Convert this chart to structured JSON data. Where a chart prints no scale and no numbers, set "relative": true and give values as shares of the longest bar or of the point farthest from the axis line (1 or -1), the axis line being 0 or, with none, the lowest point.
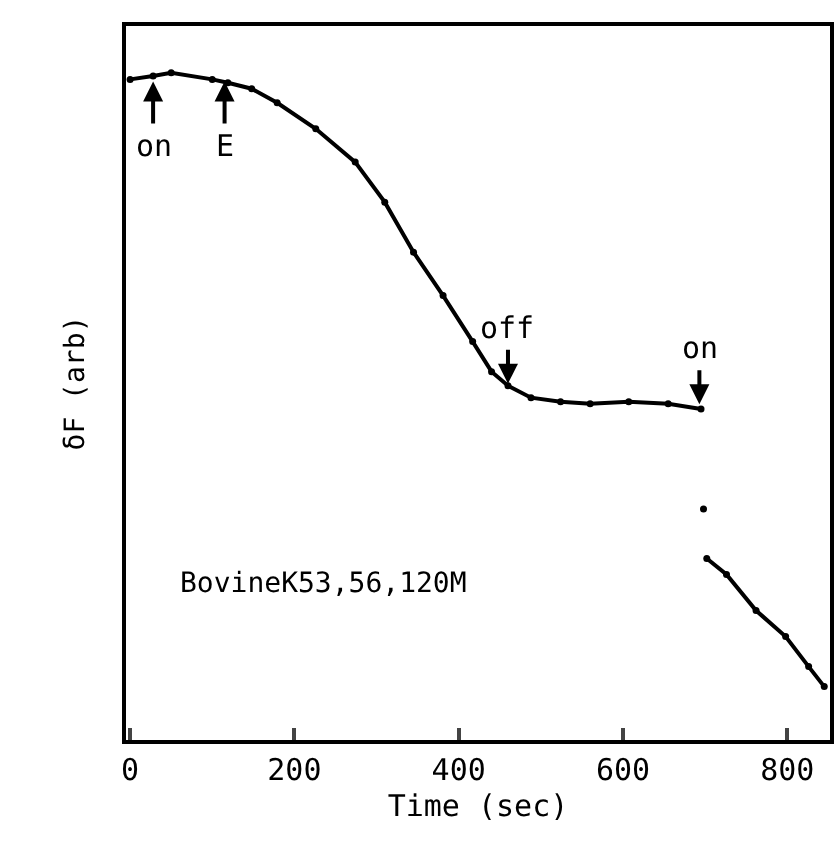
{
  "chart_data": {
    "type": "line",
    "relative": true,
    "xlabel": "Time (sec)",
    "ylabel": "δF (arb)",
    "xlim": [
      -5,
      852
    ],
    "xticks": [
      0,
      200,
      400,
      600,
      800
    ],
    "tick_labels": "x",
    "marker": "circle",
    "line_style": "solid",
    "series": [
      {
        "color": "#000000",
        "x": [
          0,
          28,
          50,
          100,
          119,
          148,
          179,
          226,
          274,
          310,
          345,
          381,
          417,
          440,
          460,
          488,
          524,
          560,
          607,
          655,
          695,
          696,
          698,
          699,
          702,
          726,
          762,
          798,
          826,
          845
        ],
        "values": [
          0.99,
          0.995,
          1.0,
          0.99,
          0.985,
          0.976,
          0.955,
          0.916,
          0.866,
          0.806,
          0.731,
          0.666,
          0.597,
          0.552,
          0.531,
          0.513,
          0.507,
          0.504,
          0.507,
          0.504,
          0.496,
          null,
          0.346,
          null,
          0.272,
          0.248,
          0.194,
          0.155,
          0.11,
          0.08
        ]
      }
    ],
    "annotations": [
      {
        "text": "on",
        "x": 28,
        "y": 0.99
      },
      {
        "text": "E",
        "x": 115,
        "y": 0.99
      },
      {
        "text": "off",
        "x": 460,
        "y": 0.531
      },
      {
        "text": "on",
        "x": 693,
        "y": 0.5
      },
      "BovineK53,56,120M"
    ]
  }
}
